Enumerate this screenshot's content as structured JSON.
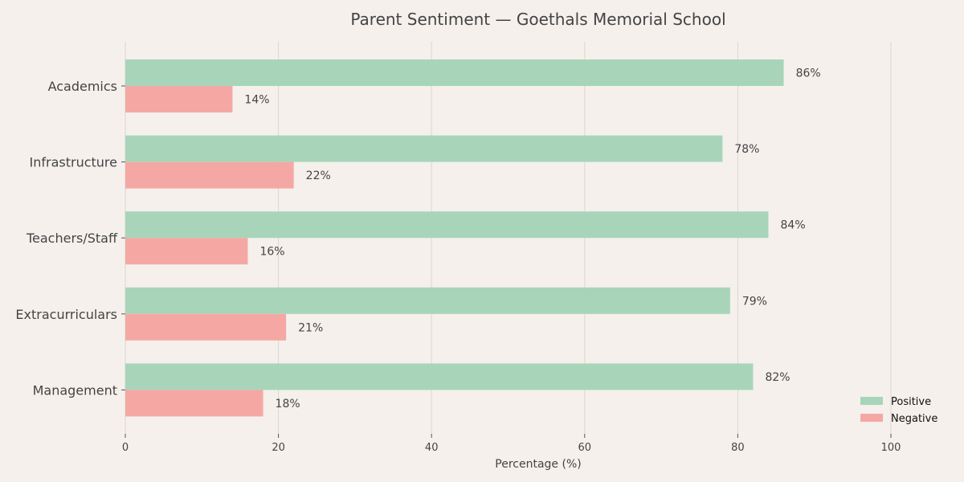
{
  "chart_data": {
    "type": "bar",
    "orientation": "horizontal",
    "title": "Parent Sentiment — Goethals Memorial School",
    "xlabel": "Percentage (%)",
    "ylabel": "",
    "categories": [
      "Academics",
      "Infrastructure",
      "Teachers/Staff",
      "Extracurriculars",
      "Management"
    ],
    "series": [
      {
        "name": "Positive",
        "values": [
          86,
          78,
          84,
          79,
          82
        ],
        "color": "#a8d5ba"
      },
      {
        "name": "Negative",
        "values": [
          14,
          22,
          16,
          21,
          18
        ],
        "color": "#f5a8a3"
      }
    ],
    "data_label_suffix": "%",
    "xlim": [
      0,
      100
    ],
    "xticks": [
      0,
      20,
      40,
      60,
      80,
      100
    ],
    "grid": "vertical",
    "legend_position": "lower-right"
  }
}
